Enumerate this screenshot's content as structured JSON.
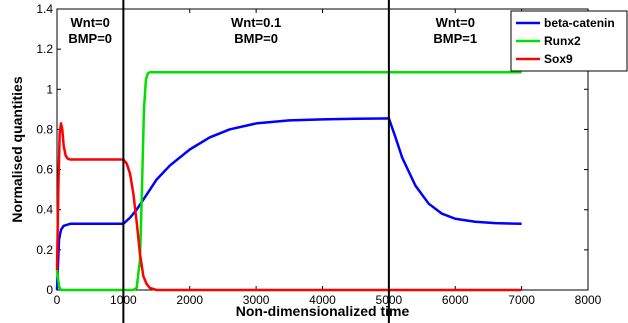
{
  "chart_data": {
    "type": "line",
    "title": "",
    "xlabel": "Non-dimensionalized time",
    "ylabel": "Normalised quantities",
    "xlim": [
      0,
      8000
    ],
    "ylim": [
      0,
      1.4
    ],
    "x_ticks": [
      0,
      1000,
      2000,
      3000,
      4000,
      5000,
      6000,
      7000,
      8000
    ],
    "y_ticks": [
      0,
      0.2,
      0.4,
      0.6,
      0.8,
      1,
      1.2,
      1.4
    ],
    "grid": false,
    "legend_position": "top-right",
    "vertical_lines": [
      1000,
      5000
    ],
    "annotations": [
      {
        "x": 500,
        "lines": [
          "Wnt=0",
          "BMP=0"
        ]
      },
      {
        "x": 3000,
        "lines": [
          "Wnt=0.1",
          "BMP=0"
        ]
      },
      {
        "x": 6000,
        "lines": [
          "Wnt=0",
          "BMP=1"
        ]
      }
    ],
    "series": [
      {
        "name": "beta-catenin",
        "color": "#0000ff",
        "x": [
          0,
          30,
          60,
          100,
          150,
          200,
          400,
          600,
          800,
          1000,
          1100,
          1200,
          1300,
          1400,
          1500,
          1700,
          2000,
          2300,
          2600,
          3000,
          3500,
          4000,
          4500,
          5000,
          5100,
          5200,
          5400,
          5600,
          5800,
          6000,
          6300,
          6600,
          7000
        ],
        "y": [
          0,
          0.25,
          0.3,
          0.32,
          0.325,
          0.33,
          0.33,
          0.33,
          0.33,
          0.33,
          0.36,
          0.4,
          0.45,
          0.5,
          0.55,
          0.62,
          0.7,
          0.76,
          0.8,
          0.83,
          0.845,
          0.85,
          0.853,
          0.855,
          0.76,
          0.66,
          0.52,
          0.43,
          0.38,
          0.355,
          0.34,
          0.333,
          0.33
        ]
      },
      {
        "name": "Runx2",
        "color": "#00e000",
        "x": [
          0,
          30,
          60,
          100,
          500,
          1000,
          1150,
          1200,
          1250,
          1280,
          1310,
          1340,
          1370,
          1400,
          1500,
          7000
        ],
        "y": [
          0.1,
          0.02,
          0,
          0,
          0,
          0,
          0,
          0.01,
          0.15,
          0.5,
          0.9,
          1.05,
          1.08,
          1.085,
          1.085,
          1.085
        ]
      },
      {
        "name": "Sox9",
        "color": "#ff0000",
        "x": [
          0,
          20,
          40,
          60,
          80,
          100,
          130,
          160,
          200,
          300,
          600,
          1000,
          1050,
          1100,
          1150,
          1200,
          1250,
          1300,
          1350,
          1400,
          1500,
          7000
        ],
        "y": [
          0.1,
          0.5,
          0.78,
          0.83,
          0.8,
          0.72,
          0.67,
          0.655,
          0.65,
          0.65,
          0.65,
          0.65,
          0.63,
          0.58,
          0.48,
          0.34,
          0.18,
          0.07,
          0.03,
          0.01,
          0,
          0
        ]
      }
    ]
  }
}
